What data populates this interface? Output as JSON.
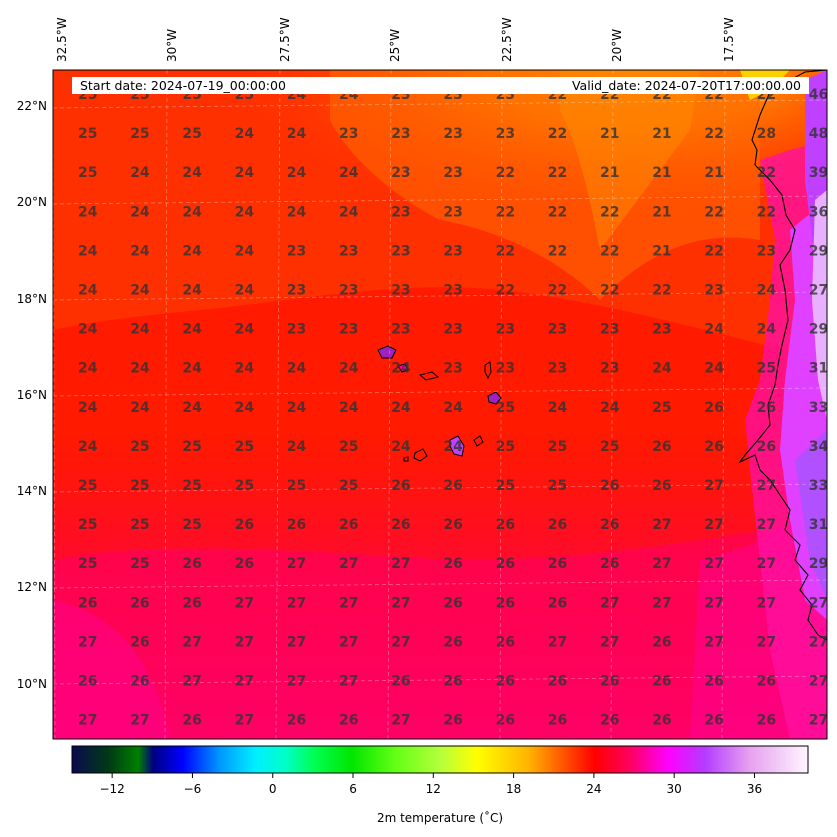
{
  "header": {
    "start_date": "Start date: 2024-07-19_00:00:00",
    "valid_date": "Valid_date: 2024-07-20T17:00:00.00"
  },
  "longitude_labels": [
    "32.5°W",
    "30°W",
    "27.5°W",
    "25°W",
    "22.5°W",
    "20°W",
    "17.5°W"
  ],
  "latitude_labels": [
    "22°N",
    "20°N",
    "18°N",
    "16°N",
    "14°N",
    "12°N",
    "10°N"
  ],
  "grid_values": [
    [
      "25",
      "25",
      "25",
      "25",
      "24",
      "24",
      "23",
      "23",
      "23",
      "22",
      "22",
      "22",
      "22",
      "22",
      "46"
    ],
    [
      "25",
      "25",
      "25",
      "24",
      "24",
      "23",
      "23",
      "23",
      "23",
      "22",
      "21",
      "21",
      "22",
      "28",
      "48"
    ],
    [
      "25",
      "24",
      "24",
      "24",
      "24",
      "24",
      "23",
      "23",
      "22",
      "22",
      "21",
      "21",
      "21",
      "22",
      "39"
    ],
    [
      "24",
      "24",
      "24",
      "24",
      "24",
      "24",
      "23",
      "23",
      "22",
      "22",
      "22",
      "21",
      "22",
      "22",
      "36"
    ],
    [
      "24",
      "24",
      "24",
      "24",
      "23",
      "23",
      "23",
      "23",
      "22",
      "22",
      "22",
      "21",
      "22",
      "23",
      "29"
    ],
    [
      "24",
      "24",
      "24",
      "24",
      "23",
      "23",
      "23",
      "23",
      "22",
      "22",
      "22",
      "22",
      "23",
      "24",
      "27"
    ],
    [
      "24",
      "24",
      "24",
      "24",
      "23",
      "23",
      "23",
      "23",
      "23",
      "23",
      "23",
      "23",
      "24",
      "24",
      "29"
    ],
    [
      "24",
      "24",
      "24",
      "24",
      "24",
      "24",
      "24",
      "23",
      "23",
      "23",
      "23",
      "24",
      "24",
      "25",
      "31"
    ],
    [
      "24",
      "24",
      "24",
      "24",
      "24",
      "24",
      "24",
      "24",
      "25",
      "24",
      "24",
      "25",
      "26",
      "26",
      "33"
    ],
    [
      "24",
      "25",
      "25",
      "25",
      "24",
      "25",
      "24",
      "24",
      "25",
      "25",
      "25",
      "26",
      "26",
      "26",
      "34"
    ],
    [
      "25",
      "25",
      "25",
      "25",
      "25",
      "25",
      "26",
      "26",
      "25",
      "25",
      "26",
      "26",
      "27",
      "27",
      "33"
    ],
    [
      "25",
      "25",
      "25",
      "26",
      "26",
      "26",
      "26",
      "26",
      "26",
      "26",
      "26",
      "27",
      "27",
      "27",
      "31"
    ],
    [
      "25",
      "25",
      "26",
      "26",
      "27",
      "27",
      "27",
      "26",
      "26",
      "26",
      "26",
      "27",
      "27",
      "27",
      "29"
    ],
    [
      "26",
      "26",
      "26",
      "27",
      "27",
      "27",
      "27",
      "26",
      "26",
      "26",
      "27",
      "27",
      "27",
      "27",
      "27"
    ],
    [
      "27",
      "26",
      "27",
      "27",
      "27",
      "27",
      "27",
      "26",
      "26",
      "27",
      "27",
      "26",
      "27",
      "27",
      "27"
    ],
    [
      "26",
      "26",
      "27",
      "27",
      "27",
      "27",
      "26",
      "26",
      "26",
      "26",
      "26",
      "26",
      "26",
      "26",
      "27"
    ],
    [
      "27",
      "27",
      "26",
      "27",
      "26",
      "26",
      "27",
      "26",
      "26",
      "26",
      "26",
      "26",
      "26",
      "26",
      "27"
    ]
  ],
  "colorbar": {
    "ticks": [
      "−12",
      "−6",
      "0",
      "6",
      "12",
      "18",
      "24",
      "30",
      "36"
    ],
    "tick_values": [
      -12,
      -6,
      0,
      6,
      12,
      18,
      24,
      30,
      36
    ],
    "min": -15,
    "max": 40,
    "label": "2m temperature ($^\\circ$C)",
    "label_display": "2m temperature (˚C)",
    "colors": [
      "#08085a",
      "#00306e",
      "#005000",
      "#006400",
      "#0000c8",
      "#0050ff",
      "#00a0ff",
      "#00e6ff",
      "#00ffc8",
      "#00ff64",
      "#00ff00",
      "#64ff00",
      "#a0ff32",
      "#d2ff32",
      "#ffff00",
      "#ffd200",
      "#ffa000",
      "#ff5000",
      "#ff0000",
      "#ff0050",
      "#ff00a0",
      "#ff00ff",
      "#c864ff",
      "#dca0ff",
      "#f0d2ff",
      "#fff0ff"
    ]
  }
}
